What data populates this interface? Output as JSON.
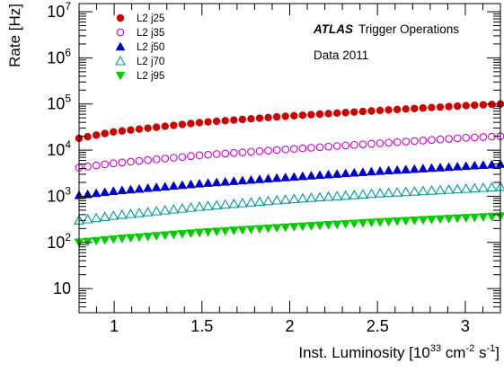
{
  "chart_data": {
    "type": "scatter",
    "title": "",
    "xlabel": "Inst. Luminosity [10",
    "xlabel_exp1": "33",
    "xlabel_unit1": " cm",
    "xlabel_exp2": "-2",
    "xlabel_unit2": " s",
    "xlabel_exp3": "-1",
    "xlabel_close": "]",
    "ylabel": "Rate [Hz]",
    "xlim": [
      0.8,
      3.2
    ],
    "ylim": [
      3,
      15000000
    ],
    "yscale": "log",
    "grid": false,
    "legend_position": "top-left",
    "x_ticks": [
      1,
      1.5,
      2,
      2.5,
      3
    ],
    "x_tick_labels": [
      "1",
      "1.5",
      "2",
      "2.5",
      "3"
    ],
    "y_ticks": [
      10,
      100,
      1000,
      10000,
      100000,
      1000000,
      10000000
    ],
    "y_tick_labels": [
      {
        "base": "10",
        "exp": ""
      },
      {
        "base": "10",
        "exp": "2"
      },
      {
        "base": "10",
        "exp": "3"
      },
      {
        "base": "10",
        "exp": "4"
      },
      {
        "base": "10",
        "exp": "5"
      },
      {
        "base": "10",
        "exp": "6"
      },
      {
        "base": "10",
        "exp": "7"
      }
    ],
    "annotations": {
      "atlas": "ATLAS",
      "trigger_ops": "Trigger Operations",
      "data": "Data 2011"
    },
    "n_points": 50,
    "series": [
      {
        "name": "L2 j25",
        "marker": "filled-circle",
        "color": "#cc0000",
        "values": {
          "x": [
            0.8,
            1.0,
            1.5,
            2.0,
            2.5,
            3.0,
            3.2
          ],
          "y": [
            18000,
            25000,
            40000,
            55000,
            72000,
            92000,
            100000
          ]
        }
      },
      {
        "name": "L2 j35",
        "marker": "open-circle",
        "color": "#cc00cc",
        "values": {
          "x": [
            0.8,
            1.0,
            1.5,
            2.0,
            2.5,
            3.0,
            3.2
          ],
          "y": [
            4200,
            5200,
            7800,
            10500,
            14000,
            18500,
            20000
          ]
        }
      },
      {
        "name": "L2 j50",
        "marker": "filled-triangle-up",
        "color": "#0000cc",
        "values": {
          "x": [
            0.8,
            1.0,
            1.5,
            2.0,
            2.5,
            3.0,
            3.2
          ],
          "y": [
            1050,
            1300,
            1900,
            2600,
            3500,
            4500,
            5000
          ]
        }
      },
      {
        "name": "L2 j70",
        "marker": "open-triangle-up",
        "color": "#009999",
        "values": {
          "x": [
            0.8,
            1.0,
            1.5,
            2.0,
            2.5,
            3.0,
            3.2
          ],
          "y": [
            300,
            380,
            600,
            860,
            1150,
            1450,
            1600
          ]
        }
      },
      {
        "name": "L2 j95",
        "marker": "filled-triangle-down",
        "color": "#00cc00",
        "values": {
          "x": [
            0.8,
            1.0,
            1.5,
            2.0,
            2.5,
            3.0,
            3.2
          ],
          "y": [
            100,
            118,
            165,
            215,
            275,
            340,
            370
          ]
        }
      }
    ]
  }
}
